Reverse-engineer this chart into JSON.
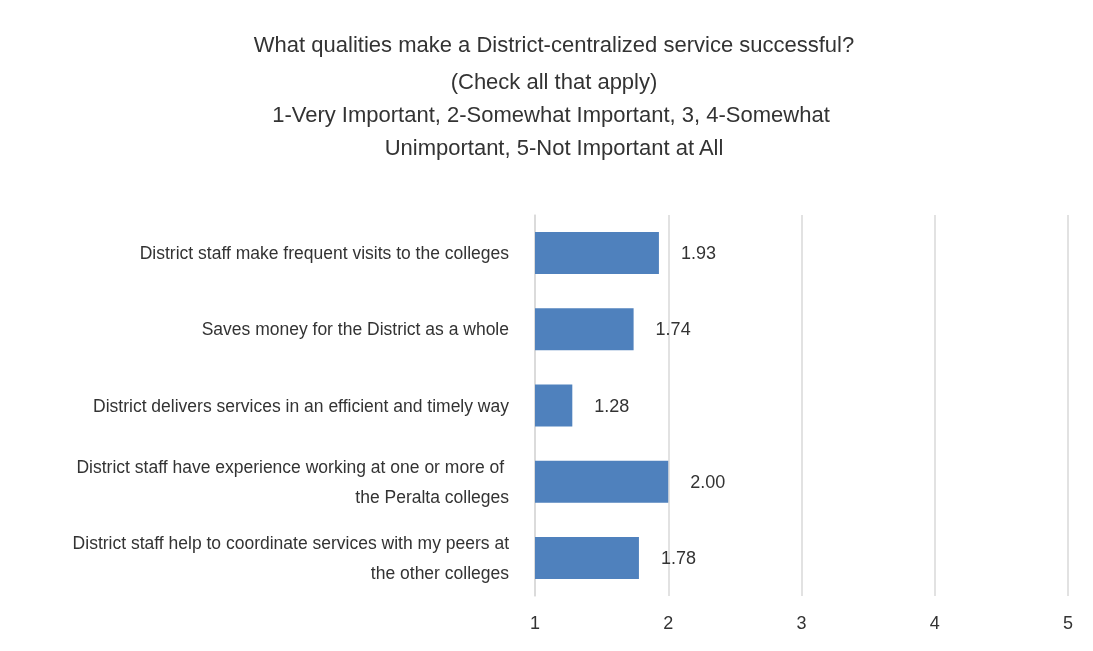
{
  "chart_data": {
    "type": "bar",
    "orientation": "horizontal",
    "title": "What qualities make a District-centralized service successful?",
    "subtitle": "(Check all that apply)\n1-Very Important, 2-Somewhat Important, 3, 4-Somewhat Unimportant, 5-Not Important at All",
    "categories": [
      "District staff make frequent visits to the colleges",
      "Saves money for the District as a whole",
      "District delivers services in an efficient and timely way",
      "District staff have experience working at one or more of the Peralta colleges",
      "District staff help to coordinate services with my peers at the other colleges"
    ],
    "values": [
      1.93,
      1.74,
      1.28,
      2.0,
      1.78
    ],
    "value_labels": [
      "1.93",
      "1.74",
      "1.28",
      "2.00",
      "1.78"
    ],
    "color": "#4f81bd",
    "xlim": [
      1,
      5
    ],
    "xticks": [
      1,
      2,
      3,
      4,
      5
    ],
    "grid": "x"
  }
}
